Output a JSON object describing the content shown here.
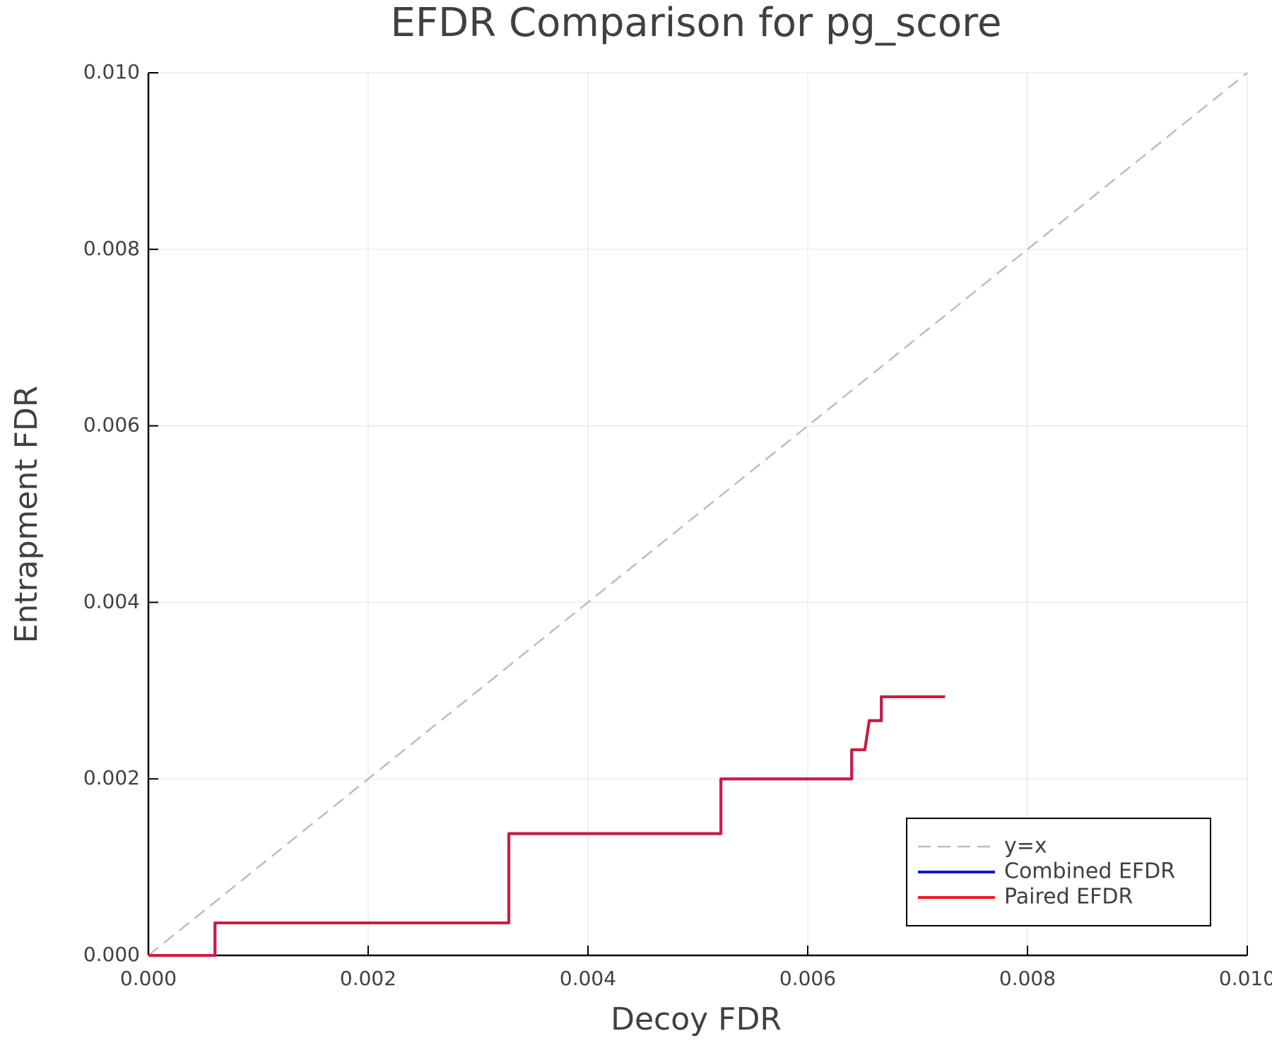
{
  "chart_data": {
    "type": "line",
    "title": "EFDR Comparison for pg_score",
    "x_label": "Decoy FDR",
    "y_label": "Entrapment FDR",
    "xlim": [
      0,
      0.01
    ],
    "ylim": [
      0,
      0.01
    ],
    "xticks": [
      {
        "value": 0,
        "label": "0.000"
      },
      {
        "value": 0.002,
        "label": "0.002"
      },
      {
        "value": 0.004,
        "label": "0.004"
      },
      {
        "value": 0.006,
        "label": "0.006"
      },
      {
        "value": 0.008,
        "label": "0.008"
      },
      {
        "value": 0.01,
        "label": "0.010"
      }
    ],
    "yticks": [
      {
        "value": 0,
        "label": "0.000"
      },
      {
        "value": 0.002,
        "label": "0.002"
      },
      {
        "value": 0.004,
        "label": "0.004"
      },
      {
        "value": 0.006,
        "label": "0.006"
      },
      {
        "value": 0.008,
        "label": "0.008"
      },
      {
        "value": 0.01,
        "label": "0.010"
      }
    ],
    "grid": true,
    "legend": "lower right",
    "series": [
      {
        "name": "y=x",
        "color": "#bdbdbd",
        "dashed": true,
        "x": [
          0,
          0.01
        ],
        "values": [
          0,
          0.01
        ]
      },
      {
        "name": "Combined EFDR",
        "color": "#1515d8",
        "x": [
          0,
          0.000606,
          0.000606,
          0.00328,
          0.00328,
          0.00521,
          0.00521,
          0.0064,
          0.0064,
          0.00652,
          0.00656,
          0.00667,
          0.00667,
          0.00725
        ],
        "values": [
          0,
          0,
          0.000368,
          0.000368,
          0.00138,
          0.00138,
          0.002,
          0.002,
          0.00233,
          0.00233,
          0.00266,
          0.00266,
          0.00293,
          0.00293
        ]
      },
      {
        "name": "Paired EFDR",
        "color": "#ee1c24",
        "x": [
          0,
          0.000606,
          0.000606,
          0.00328,
          0.00328,
          0.00521,
          0.00521,
          0.0064,
          0.0064,
          0.00652,
          0.00656,
          0.00667,
          0.00667,
          0.00725
        ],
        "values": [
          0,
          0,
          0.000368,
          0.000368,
          0.00138,
          0.00138,
          0.002,
          0.002,
          0.00233,
          0.00233,
          0.00266,
          0.00266,
          0.00293,
          0.00293
        ]
      }
    ]
  }
}
